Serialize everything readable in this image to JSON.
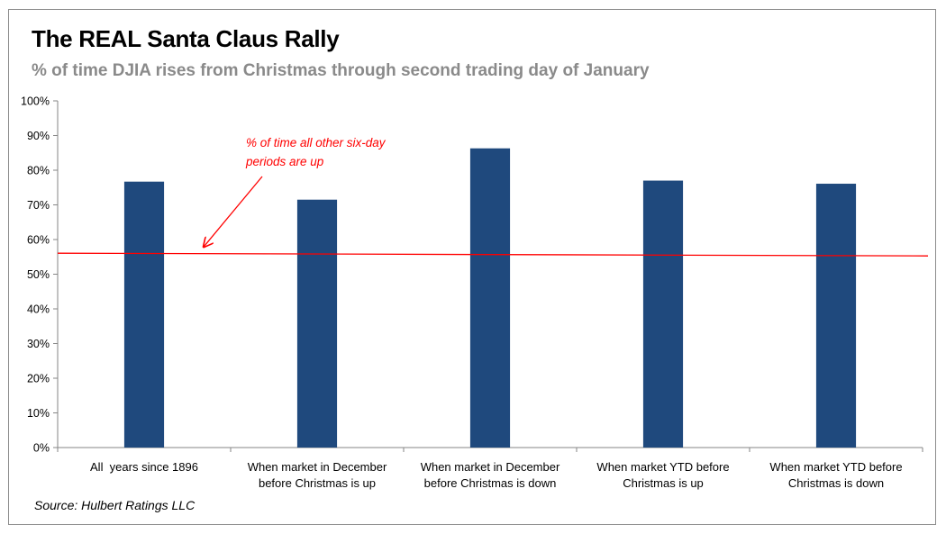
{
  "chart_data": {
    "type": "bar",
    "title": "The REAL Santa Claus Rally",
    "subtitle": "% of time DJIA rises from Christmas through second trading day of January",
    "categories": [
      [
        "All  years since 1896"
      ],
      [
        "When market in December",
        "before Christmas is up"
      ],
      [
        "When market in December",
        "before Christmas is down"
      ],
      [
        "When market YTD before",
        "Christmas is up"
      ],
      [
        "When market YTD before",
        "Christmas is down"
      ]
    ],
    "values": [
      76.7,
      71.5,
      86.3,
      77.0,
      76.1
    ],
    "ylim": [
      0,
      100
    ],
    "yticks": [
      0,
      10,
      20,
      30,
      40,
      50,
      60,
      70,
      80,
      90,
      100
    ],
    "ytick_format": "{v}%",
    "grid": false,
    "reference_line": {
      "value": 55.8,
      "label": [
        "% of time all other six-day",
        "periods are up"
      ]
    },
    "colors": {
      "bar": "#1f497d",
      "reference_line": "#ff0000",
      "axis": "#868686"
    }
  },
  "source": "Source: Hulbert Ratings LLC"
}
